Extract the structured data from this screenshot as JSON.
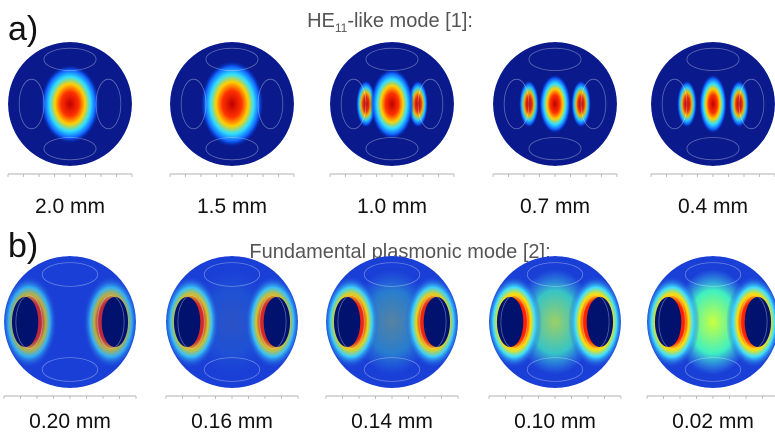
{
  "rows": [
    {
      "label": "a)",
      "title": {
        "main": "HE",
        "sub": "11",
        "rest": "-like mode [1]:"
      },
      "items": [
        "2.0 mm",
        "1.5 mm",
        "1.0 mm",
        "0.7 mm",
        "0.4 mm"
      ]
    },
    {
      "label": "b)",
      "title": {
        "main": "Fundamental plasmonic mode [2]:"
      },
      "items": [
        "0.20 mm",
        "0.16 mm",
        "0.14 mm",
        "0.10 mm",
        "0.02 mm"
      ]
    }
  ]
}
